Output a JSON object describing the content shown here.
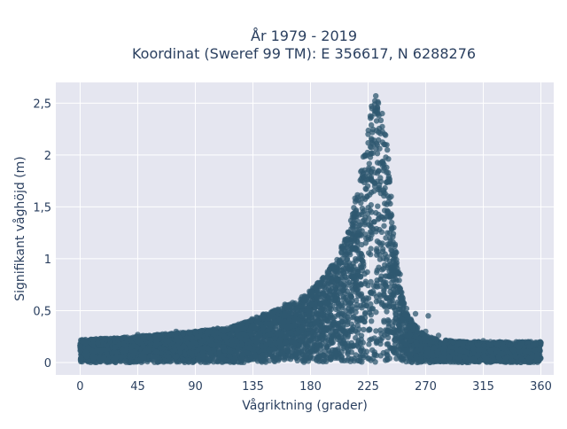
{
  "chart_data": {
    "type": "scatter",
    "title_line1": "År 1979 - 2019",
    "title_line2": "Koordinat (Sweref 99 TM): E 356617, N 6288276",
    "xlabel": "Vågriktning (grader)",
    "ylabel": "Signifikant våghöjd (m)",
    "xlim": [
      -19,
      370
    ],
    "ylim": [
      -0.12,
      2.7
    ],
    "x_ticks": [
      0,
      45,
      90,
      135,
      180,
      225,
      270,
      315,
      360
    ],
    "x_tick_labels": [
      "0",
      "45",
      "90",
      "135",
      "180",
      "225",
      "270",
      "315",
      "360"
    ],
    "y_ticks": [
      0,
      0.5,
      1,
      1.5,
      2,
      2.5
    ],
    "y_tick_labels": [
      "0",
      "0,5",
      "1",
      "1,5",
      "2",
      "2,5"
    ],
    "grid": true,
    "marker_color": "#2f5870",
    "plot_background": "#e5e6f0",
    "envelope": {
      "x": [
        0,
        30,
        60,
        90,
        120,
        150,
        170,
        180,
        190,
        200,
        210,
        215,
        220,
        225,
        228,
        232,
        236,
        240,
        245,
        250,
        255,
        260,
        270,
        280,
        300,
        330,
        360
      ],
      "y_max": [
        0.22,
        0.24,
        0.27,
        0.3,
        0.35,
        0.5,
        0.6,
        0.7,
        0.82,
        1.0,
        1.3,
        1.6,
        1.9,
        2.3,
        2.5,
        2.57,
        2.45,
        2.1,
        1.3,
        0.75,
        0.5,
        0.38,
        0.26,
        0.22,
        0.2,
        0.2,
        0.2
      ]
    },
    "points": [
      [
        0,
        0.16
      ],
      [
        2,
        0.2
      ],
      [
        5,
        0.06
      ],
      [
        10,
        0.22
      ],
      [
        20,
        0.12
      ],
      [
        30,
        0.22
      ],
      [
        45,
        0.27
      ],
      [
        50,
        0.05
      ],
      [
        60,
        0.26
      ],
      [
        75,
        0.3
      ],
      [
        90,
        0.29
      ],
      [
        100,
        0.03
      ],
      [
        120,
        0.35
      ],
      [
        135,
        0.36
      ],
      [
        150,
        0.48
      ],
      [
        160,
        0.56
      ],
      [
        175,
        0.6
      ],
      [
        180,
        0.68
      ],
      [
        190,
        0.8
      ],
      [
        200,
        0.95
      ],
      [
        205,
        1.1
      ],
      [
        210,
        1.25
      ],
      [
        215,
        1.55
      ],
      [
        220,
        1.85
      ],
      [
        225,
        2.2
      ],
      [
        228,
        2.45
      ],
      [
        231,
        2.57
      ],
      [
        233,
        2.5
      ],
      [
        236,
        2.4
      ],
      [
        238,
        2.2
      ],
      [
        240,
        2.05
      ],
      [
        243,
        1.6
      ],
      [
        245,
        1.3
      ],
      [
        250,
        0.85
      ],
      [
        255,
        0.52
      ],
      [
        258,
        0.35
      ],
      [
        262,
        0.47
      ],
      [
        270,
        0.3
      ],
      [
        272,
        0.45
      ],
      [
        280,
        0.26
      ],
      [
        300,
        0.2
      ],
      [
        305,
        0.03
      ],
      [
        315,
        0.21
      ],
      [
        330,
        0.18
      ],
      [
        340,
        0.06
      ],
      [
        350,
        0.2
      ],
      [
        360,
        0.19
      ]
    ]
  }
}
